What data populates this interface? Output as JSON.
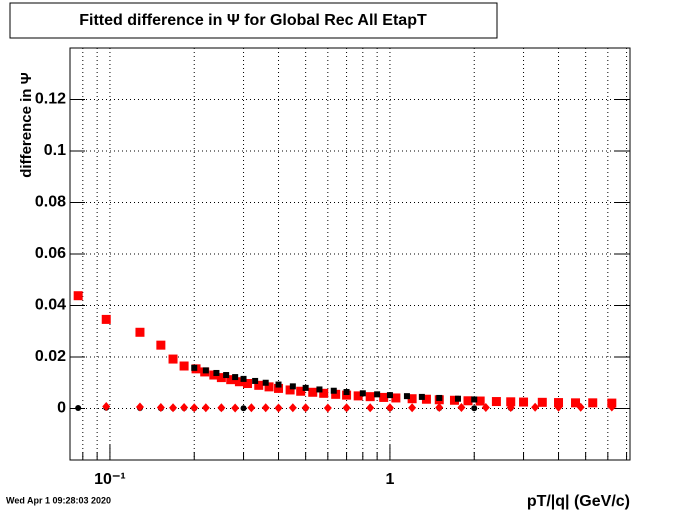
{
  "chart_data": {
    "type": "scatter",
    "title": "Fitted difference in  Ψ  for Global Rec All EtapT",
    "xlabel": "pT/|q| (GeV/c)",
    "ylabel": "difference in  Ψ",
    "timestamp": "Wed Apr  1 09:28:03 2020",
    "xscale": "log",
    "grid": true,
    "xlim": [
      0.072,
      7.2
    ],
    "ylim": [
      -0.02,
      0.14
    ],
    "xticks": [
      {
        "value": 0.1,
        "label": "10⁻¹"
      },
      1
    ],
    "xminor": [
      0.08,
      0.09,
      0.2,
      0.3,
      0.4,
      0.5,
      0.6,
      0.7,
      0.8,
      0.9,
      2,
      3,
      4,
      5,
      6,
      7
    ],
    "yticks": [
      0,
      0.02,
      0.04,
      0.06,
      0.08,
      0.1,
      0.12
    ],
    "series": [
      {
        "color": "#ff0000",
        "marker": "square",
        "x": [
          0.077,
          0.097,
          0.128,
          0.152,
          0.168,
          0.184,
          0.203,
          0.218,
          0.235,
          0.25,
          0.27,
          0.29,
          0.31,
          0.34,
          0.37,
          0.4,
          0.44,
          0.48,
          0.53,
          0.58,
          0.64,
          0.7,
          0.77,
          0.85,
          0.95,
          1.05,
          1.2,
          1.35,
          1.5,
          1.7,
          1.9,
          2.1,
          2.4,
          2.7,
          3.0,
          3.5,
          4.0,
          4.6,
          5.3,
          6.2
        ],
        "values": [
          0.0438,
          0.0346,
          0.0296,
          0.0246,
          0.0192,
          0.0165,
          0.0154,
          0.0142,
          0.013,
          0.012,
          0.0112,
          0.0104,
          0.0097,
          0.009,
          0.0084,
          0.0078,
          0.0072,
          0.0067,
          0.0063,
          0.0059,
          0.0055,
          0.0052,
          0.0049,
          0.0046,
          0.0043,
          0.0041,
          0.0038,
          0.0036,
          0.0034,
          0.0032,
          0.003,
          0.0029,
          0.0027,
          0.0026,
          0.0025,
          0.0024,
          0.0023,
          0.0022,
          0.0022,
          0.0021
        ]
      },
      {
        "color": "#000000",
        "marker": "small-square",
        "x": [
          0.2,
          0.22,
          0.24,
          0.26,
          0.28,
          0.3,
          0.33,
          0.36,
          0.4,
          0.45,
          0.5,
          0.56,
          0.63,
          0.7,
          0.8,
          0.9,
          1.0,
          1.15,
          1.3,
          1.5,
          1.75,
          2.0
        ],
        "values": [
          0.0158,
          0.0148,
          0.0138,
          0.013,
          0.0122,
          0.0115,
          0.0107,
          0.01,
          0.0093,
          0.0086,
          0.008,
          0.0074,
          0.0069,
          0.0064,
          0.0059,
          0.0055,
          0.0052,
          0.0048,
          0.0045,
          0.0041,
          0.0038,
          0.0035
        ]
      },
      {
        "color": "#000000",
        "marker": "circle",
        "x": [
          0.077,
          0.097,
          0.128,
          0.152,
          0.168,
          0.184,
          0.2,
          0.25,
          0.3,
          0.4,
          0.5,
          0.7,
          1.0,
          1.5,
          2.0,
          2.7
        ],
        "values": [
          0.0002,
          0.0003,
          0.0002,
          0.0001,
          0.0002,
          0.0002,
          0.0001,
          0.0002,
          0.0001,
          0.0002,
          0.0001,
          0.0002,
          0.0001,
          0.0002,
          0.0001,
          0.0002
        ]
      },
      {
        "color": "#ff0000",
        "marker": "diamond",
        "x": [
          0.097,
          0.128,
          0.152,
          0.168,
          0.184,
          0.2,
          0.22,
          0.25,
          0.28,
          0.32,
          0.36,
          0.4,
          0.45,
          0.5,
          0.6,
          0.7,
          0.85,
          1.0,
          1.2,
          1.5,
          1.8,
          2.2,
          2.7,
          3.3,
          4.0,
          4.8,
          6.2
        ],
        "values": [
          0.0008,
          0.0006,
          0.0004,
          0.0003,
          0.0004,
          0.0003,
          0.0003,
          0.0003,
          0.0002,
          0.0003,
          0.0003,
          0.0002,
          0.0003,
          0.0003,
          0.0002,
          0.0003,
          0.0003,
          0.0003,
          0.0003,
          0.0004,
          0.0004,
          0.0004,
          0.0004,
          0.0005,
          0.0005,
          0.0005,
          0.0006
        ]
      }
    ]
  }
}
